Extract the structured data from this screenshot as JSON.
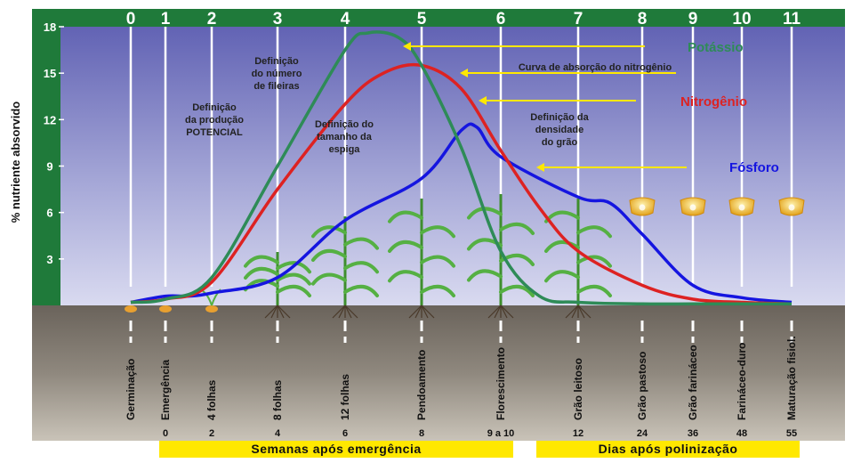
{
  "chart_data": {
    "type": "line",
    "ylabel": "% nutriente absorvido",
    "yticks": [
      "18",
      "15",
      "12",
      "9",
      "6",
      "3"
    ],
    "ylim": [
      0,
      18
    ],
    "stages": [
      "0",
      "1",
      "2",
      "3",
      "4",
      "5",
      "6",
      "7",
      "8",
      "9",
      "10",
      "11"
    ],
    "stage_names": [
      "Germinação",
      "Emergência",
      "4 folhas",
      "8 folhas",
      "12 folhas",
      "Pendoamento",
      "Florescimento",
      "Grão leitoso",
      "Grão pastoso",
      "Grão farináceo",
      "Farináceo-duro",
      "Maturação fisiol."
    ],
    "weeks_labels": [
      "0",
      "2",
      "4",
      "6",
      "8",
      "9 a 10"
    ],
    "days_labels": [
      "12",
      "24",
      "36",
      "48",
      "55"
    ],
    "band_weeks": "Semanas após emergência",
    "band_days": "Dias após polinização",
    "annotations": {
      "producao": [
        "Definição",
        "da produção",
        "POTENCIAL"
      ],
      "fileiras": [
        "Definição",
        "do número",
        "de fileiras"
      ],
      "espiga": [
        "Definição do",
        "tamanho da",
        "espiga"
      ],
      "curva": "Curva de absorção do nitrogênio",
      "densidade": [
        "Definição da",
        "densidade",
        "do grão"
      ]
    },
    "series": [
      {
        "name": "Potássio",
        "color": "#2e8b57",
        "x": [
          0,
          1,
          2,
          3,
          4,
          4.3,
          4.7,
          5,
          5.5,
          6,
          6.5,
          7,
          8,
          9,
          10,
          11
        ],
        "values": [
          0.2,
          0.4,
          1.8,
          9.0,
          16.5,
          17.6,
          17.3,
          15.5,
          10.2,
          3.5,
          0.6,
          0.2,
          0.1,
          0.1,
          0.1,
          0.1
        ]
      },
      {
        "name": "Nitrogênio",
        "color": "#dd2222",
        "x": [
          0,
          1,
          2,
          3,
          4,
          4.5,
          5,
          5.5,
          6,
          6.5,
          7,
          8,
          9,
          10,
          11
        ],
        "values": [
          0.2,
          0.4,
          1.5,
          7.5,
          13.0,
          15.0,
          15.5,
          14.0,
          10.0,
          6.3,
          3.5,
          1.3,
          0.4,
          0.2,
          0.1
        ]
      },
      {
        "name": "Fósforo",
        "color": "#1515e0",
        "x": [
          0,
          1,
          1.5,
          2,
          3,
          4,
          5,
          5.5,
          5.7,
          6,
          7,
          7.5,
          8,
          9,
          10,
          11
        ],
        "values": [
          0.2,
          0.6,
          0.6,
          0.8,
          1.8,
          5.5,
          8.2,
          11.3,
          11.5,
          9.6,
          7.0,
          6.6,
          4.6,
          1.3,
          0.5,
          0.2
        ]
      }
    ]
  }
}
